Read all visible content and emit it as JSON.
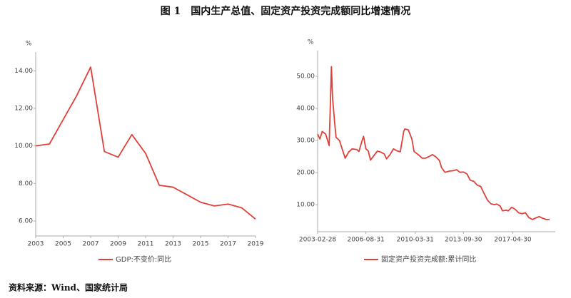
{
  "figure_title": "图 1　国内生产总值、固定资产投资完成额同比增速情况",
  "source": "资料来源：Wind、国家统计局",
  "chart_data": [
    {
      "type": "line",
      "y_label": "%",
      "x": [
        2003,
        2004,
        2005,
        2006,
        2007,
        2008,
        2009,
        2010,
        2011,
        2012,
        2013,
        2014,
        2015,
        2016,
        2017,
        2018,
        2019
      ],
      "series": [
        {
          "name": "GDP:不变价:同比",
          "color": "#e0403a",
          "values": [
            10.0,
            10.1,
            11.4,
            12.7,
            14.2,
            9.7,
            9.4,
            10.6,
            9.6,
            7.9,
            7.8,
            7.4,
            7.0,
            6.8,
            6.9,
            6.7,
            6.1
          ]
        }
      ],
      "xlim": [
        2003,
        2019
      ],
      "xticks": [
        2003,
        2005,
        2007,
        2009,
        2011,
        2013,
        2015,
        2017,
        2019
      ],
      "ylim": [
        5.2,
        15
      ],
      "yticks": [
        {
          "value": 6,
          "label": "6.00"
        },
        {
          "value": 8,
          "label": "8.00"
        },
        {
          "value": 10,
          "label": "10.00"
        },
        {
          "value": 12,
          "label": "12.00"
        },
        {
          "value": 14,
          "label": "14.00"
        }
      ]
    },
    {
      "type": "line",
      "y_label": "%",
      "x": [
        "2003-02-28",
        "2003-04-30",
        "2003-06-30",
        "2003-09-30",
        "2003-12-31",
        "2004-02-29",
        "2004-03-31",
        "2004-05-31",
        "2004-06-30",
        "2004-09-30",
        "2004-12-31",
        "2005-02-28",
        "2005-05-31",
        "2005-08-31",
        "2005-12-31",
        "2006-02-28",
        "2006-05-31",
        "2006-06-30",
        "2006-08-31",
        "2006-10-31",
        "2006-12-31",
        "2007-03-31",
        "2007-06-30",
        "2007-09-30",
        "2007-12-31",
        "2008-02-29",
        "2008-05-31",
        "2008-08-31",
        "2008-11-30",
        "2009-02-28",
        "2009-05-31",
        "2009-06-30",
        "2009-09-30",
        "2009-12-31",
        "2010-02-28",
        "2010-06-30",
        "2010-09-30",
        "2010-12-31",
        "2011-03-31",
        "2011-06-30",
        "2011-09-30",
        "2011-12-31",
        "2012-02-29",
        "2012-05-31",
        "2012-09-30",
        "2012-12-31",
        "2013-03-31",
        "2013-06-30",
        "2013-09-30",
        "2013-12-31",
        "2014-03-31",
        "2014-06-30",
        "2014-09-30",
        "2014-12-31",
        "2015-03-31",
        "2015-06-30",
        "2015-09-30",
        "2015-12-31",
        "2016-02-29",
        "2016-05-31",
        "2016-07-31",
        "2016-10-31",
        "2016-12-31",
        "2017-03-31",
        "2017-06-30",
        "2017-09-30",
        "2017-12-31",
        "2018-03-31",
        "2018-06-30",
        "2018-09-30",
        "2018-12-31",
        "2019-03-31",
        "2019-06-30",
        "2019-09-30",
        "2019-12-31"
      ],
      "series": [
        {
          "name": "固定资产投资完成额:累计同比",
          "color": "#e0403a",
          "values": [
            32.0,
            30.5,
            32.8,
            32.0,
            28.4,
            53.0,
            43.0,
            34.8,
            31.0,
            30.0,
            26.6,
            24.5,
            26.4,
            27.4,
            27.2,
            26.6,
            30.3,
            31.3,
            27.4,
            26.8,
            23.9,
            25.3,
            26.7,
            26.4,
            25.8,
            24.3,
            25.6,
            27.4,
            26.8,
            26.5,
            32.9,
            33.6,
            33.3,
            30.5,
            26.6,
            25.5,
            24.5,
            24.5,
            25.0,
            25.6,
            24.9,
            23.8,
            21.5,
            20.1,
            20.5,
            20.6,
            20.9,
            20.1,
            20.2,
            19.6,
            17.6,
            17.3,
            16.1,
            15.7,
            13.5,
            11.4,
            10.3,
            10.0,
            10.2,
            9.6,
            8.1,
            8.3,
            8.1,
            9.2,
            8.6,
            7.5,
            7.2,
            7.5,
            6.0,
            5.4,
            5.9,
            6.3,
            5.8,
            5.4,
            5.4
          ]
        }
      ],
      "xlim": [
        "2003-02-28",
        "2020-05-31"
      ],
      "xticks": [
        "2003-02-28",
        "2006-08-31",
        "2010-03-31",
        "2013-09-30",
        "2017-04-30"
      ],
      "ylim": [
        1.6,
        58
      ],
      "yticks": [
        {
          "value": 10,
          "label": "10.00"
        },
        {
          "value": 20,
          "label": "20.00"
        },
        {
          "value": 30,
          "label": "30.00"
        },
        {
          "value": 40,
          "label": "40.00"
        },
        {
          "value": 50,
          "label": "50.00"
        }
      ]
    }
  ]
}
